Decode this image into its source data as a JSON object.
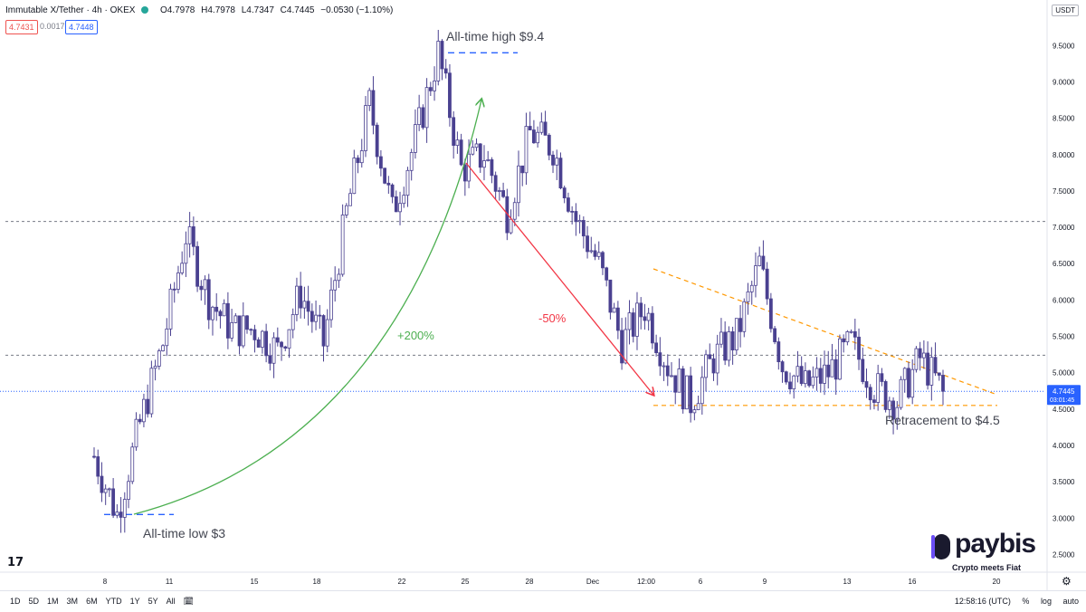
{
  "header": {
    "symbol": "Immutable X/Tether",
    "interval": "4h",
    "exchange": "OKEX",
    "open": "O4.7978",
    "high": "H4.7978",
    "low": "L4.7347",
    "close": "C4.7445",
    "change": "−0.0530 (−1.10%)",
    "bid": "4.7431",
    "spread": "0.0017",
    "ask": "4.7448",
    "quote_currency": "USDT"
  },
  "price_axis": {
    "ticks": [
      "9.5000",
      "9.0000",
      "8.5000",
      "8.0000",
      "7.5000",
      "7.0000",
      "6.5000",
      "6.0000",
      "5.5000",
      "5.0000",
      "4.5000",
      "4.0000",
      "3.5000",
      "3.0000",
      "2.5000"
    ],
    "last_price_label": "4.7445",
    "countdown_label": "03:01:45"
  },
  "time_axis": {
    "ticks": [
      "8",
      "11",
      "15",
      "18",
      "22",
      "25",
      "28",
      "Dec",
      "12:00",
      "6",
      "9",
      "13",
      "16",
      "20"
    ]
  },
  "bottom_bar": {
    "ranges": [
      "1D",
      "5D",
      "1M",
      "3M",
      "6M",
      "YTD",
      "1Y",
      "5Y",
      "All"
    ],
    "clock": "12:58:16 (UTC)",
    "percent": "%",
    "log": "log",
    "auto": "auto"
  },
  "annotations": {
    "ath": "All-time high $9.4",
    "atl": "All-time low $3",
    "gain": "+200%",
    "drop": "-50%",
    "retrace": "Retracement to $4.5"
  },
  "watermark": {
    "brand": "paybis",
    "tagline": "Crypto meets Fiat"
  },
  "colors": {
    "bull": "#ffffff",
    "bear": "#4a4190",
    "green_arrow": "#4caf50",
    "red_arrow": "#f23645",
    "orange_line": "#ff9800",
    "blue_dash": "#2962ff",
    "grey_dash": "#787b86",
    "last_price": "#2962ff"
  },
  "chart_data": {
    "type": "candlestick",
    "interval": "4h",
    "ylim": [
      2.4,
      9.7
    ],
    "key_levels": [
      {
        "label": "All-time high",
        "value": 9.4
      },
      {
        "label": "All-time low",
        "value": 3.05
      },
      {
        "value": 7.08
      },
      {
        "value": 5.24
      },
      {
        "label": "Retracement",
        "value": 4.5
      }
    ],
    "last_price": 4.7445,
    "anchors": [
      {
        "t": "Nov 7",
        "price": 3.85
      },
      {
        "t": "Nov 8",
        "price": 3.05
      },
      {
        "t": "Nov 9",
        "price": 4.3
      },
      {
        "t": "Nov 10",
        "price": 5.4
      },
      {
        "t": "Nov 11",
        "price": 6.9
      },
      {
        "t": "Nov 12",
        "price": 6.0
      },
      {
        "t": "Nov 13",
        "price": 5.6
      },
      {
        "t": "Nov 15",
        "price": 5.6
      },
      {
        "t": "Nov 17",
        "price": 5.3
      },
      {
        "t": "Nov 18",
        "price": 6.1
      },
      {
        "t": "Nov 19",
        "price": 5.4
      },
      {
        "t": "Nov 20",
        "price": 7.2
      },
      {
        "t": "Nov 21",
        "price": 8.7
      },
      {
        "t": "Nov 22",
        "price": 7.2
      },
      {
        "t": "Nov 23",
        "price": 8.2
      },
      {
        "t": "Nov 25",
        "price": 9.4
      },
      {
        "t": "Nov 26",
        "price": 7.8
      },
      {
        "t": "Nov 27",
        "price": 8.0
      },
      {
        "t": "Nov 28",
        "price": 7.2
      },
      {
        "t": "Nov 29",
        "price": 8.3
      },
      {
        "t": "Nov 30",
        "price": 8.1
      },
      {
        "t": "Dec 1",
        "price": 7.1
      },
      {
        "t": "Dec 2",
        "price": 6.5
      },
      {
        "t": "Dec 3",
        "price": 5.4
      },
      {
        "t": "Dec 4",
        "price": 5.9
      },
      {
        "t": "Dec 5",
        "price": 5.1
      },
      {
        "t": "Dec 6",
        "price": 4.6
      },
      {
        "t": "Dec 7",
        "price": 5.2
      },
      {
        "t": "Dec 8",
        "price": 5.5
      },
      {
        "t": "Dec 9",
        "price": 6.5
      },
      {
        "t": "Dec 10",
        "price": 5.1
      },
      {
        "t": "Dec 11",
        "price": 4.8
      },
      {
        "t": "Dec 12",
        "price": 5.0
      },
      {
        "t": "Dec 13",
        "price": 5.4
      },
      {
        "t": "Dec 14",
        "price": 4.8
      },
      {
        "t": "Dec 15",
        "price": 4.6
      },
      {
        "t": "Dec 16",
        "price": 5.2
      },
      {
        "t": "Dec 17",
        "price": 4.75
      }
    ]
  }
}
